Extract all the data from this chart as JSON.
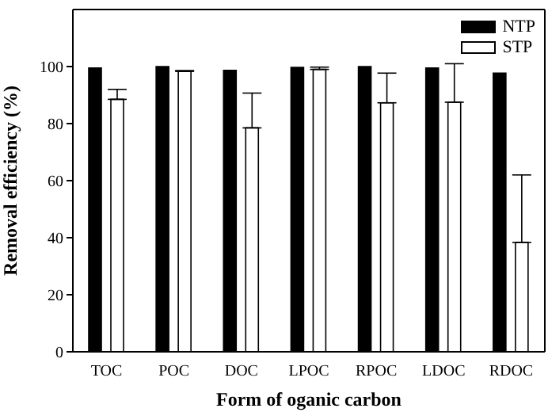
{
  "chart_data": {
    "type": "bar",
    "xlabel": "Form of oganic carbon",
    "ylabel": "Removal efficiency (%)",
    "categories": [
      "TOC",
      "POC",
      "DOC",
      "LPOC",
      "RPOC",
      "LDOC",
      "RDOC"
    ],
    "series": [
      {
        "name": "NTP",
        "color": "#000000",
        "values": [
          99.5,
          100,
          98.7,
          99.7,
          100,
          99.5,
          97.7
        ]
      },
      {
        "name": "STP",
        "color": "#ffffff",
        "values": [
          88.5,
          98.3,
          78.5,
          99,
          87.3,
          87.5,
          38.3
        ],
        "errors": [
          [
            88.5,
            92
          ],
          [
            98.3,
            98.6
          ],
          [
            78.5,
            90.7
          ],
          [
            99,
            99.8
          ],
          [
            87.3,
            97.7
          ],
          [
            87.5,
            101
          ],
          [
            38.3,
            62
          ]
        ]
      }
    ],
    "ylim": [
      0,
      120
    ],
    "yticks": [
      0,
      20,
      40,
      60,
      80,
      100
    ],
    "grid": false,
    "legend": "top right"
  }
}
